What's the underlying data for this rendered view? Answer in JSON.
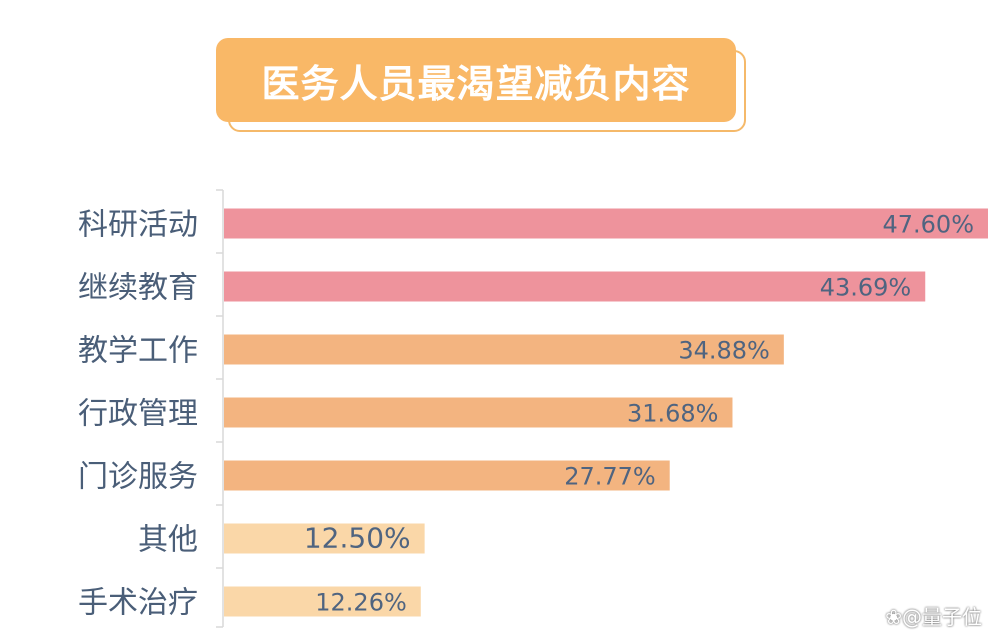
{
  "title": "医务人员最渴望减负内容",
  "watermark": "量子位",
  "watermark_icon": "paw-icon",
  "chart_data": {
    "type": "bar",
    "orientation": "horizontal",
    "title": "医务人员最渴望减负内容",
    "categories": [
      "科研活动",
      "继续教育",
      "教学工作",
      "行政管理",
      "门诊服务",
      "其他",
      "手术治疗"
    ],
    "values": [
      47.6,
      43.69,
      34.88,
      31.68,
      27.77,
      12.5,
      12.26
    ],
    "value_labels": [
      "47.60%",
      "43.69%",
      "34.88%",
      "31.68%",
      "27.77%",
      "12.50%",
      "12.26%"
    ],
    "colors": [
      "#ee939c",
      "#ee939c",
      "#f3b480",
      "#f3b480",
      "#f3b480",
      "#fad7a8",
      "#fad7a8"
    ],
    "xlim": [
      0,
      47.6
    ],
    "grid": false,
    "legend": "none"
  }
}
